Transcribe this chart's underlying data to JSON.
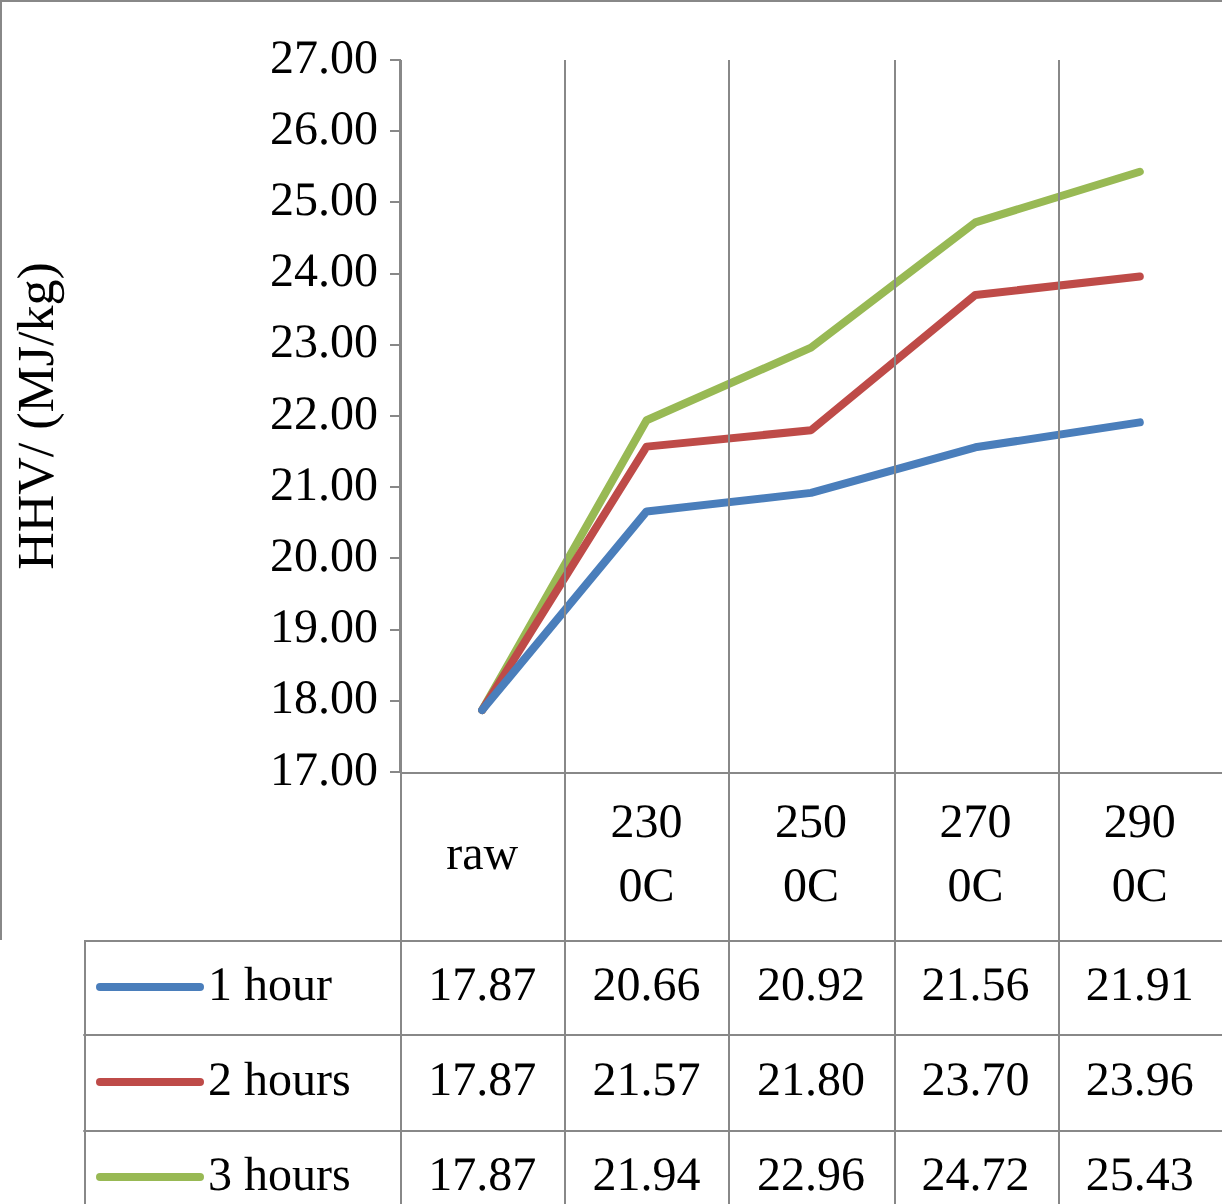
{
  "chart_data": {
    "type": "line",
    "ylabel": "HHV/ (MJ/kg)",
    "categories": [
      "raw",
      "230 0C",
      "250 0C",
      "270 0C",
      "290 0C"
    ],
    "ylim": [
      17,
      27
    ],
    "yticks": [
      {
        "value": 17,
        "label": "17.00"
      },
      {
        "value": 18,
        "label": "18.00"
      },
      {
        "value": 19,
        "label": "19.00"
      },
      {
        "value": 20,
        "label": "20.00"
      },
      {
        "value": 21,
        "label": "21.00"
      },
      {
        "value": 22,
        "label": "22.00"
      },
      {
        "value": 23,
        "label": "23.00"
      },
      {
        "value": 24,
        "label": "24.00"
      },
      {
        "value": 25,
        "label": "25.00"
      },
      {
        "value": 26,
        "label": "26.00"
      },
      {
        "value": 27,
        "label": "27.00"
      }
    ],
    "grid": false,
    "legend": "bottom",
    "marker": "none",
    "line_style": "solid",
    "series": [
      {
        "name": "1 hour",
        "color": "#4a7ebb",
        "values": [
          17.87,
          20.66,
          20.92,
          21.56,
          21.91
        ],
        "value_labels": [
          "17.87",
          "20.66",
          "20.92",
          "21.56",
          "21.91"
        ]
      },
      {
        "name": "2 hours",
        "color": "#be4b48",
        "values": [
          17.87,
          21.57,
          21.8,
          23.7,
          23.96
        ],
        "value_labels": [
          "17.87",
          "21.57",
          "21.80",
          "23.70",
          "23.96"
        ]
      },
      {
        "name": "3 hours",
        "color": "#98b954",
        "values": [
          17.87,
          21.94,
          22.96,
          24.72,
          25.43
        ],
        "value_labels": [
          "17.87",
          "21.94",
          "22.96",
          "24.72",
          "25.43"
        ]
      }
    ]
  }
}
